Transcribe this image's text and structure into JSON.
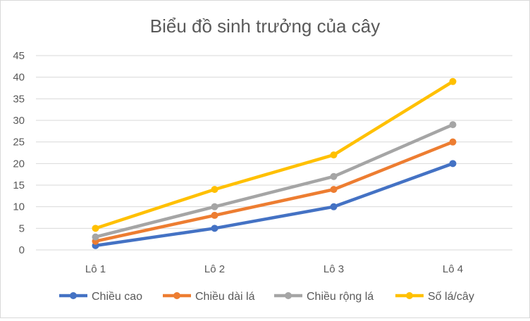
{
  "chart_data": {
    "type": "line",
    "title": "Biểu đồ sinh trưởng của cây",
    "categories": [
      "Lô 1",
      "Lô 2",
      "Lô 3",
      "Lô 4"
    ],
    "ylim": [
      0,
      45
    ],
    "yticks": [
      "0",
      "5",
      "10",
      "15",
      "20",
      "25",
      "30",
      "35",
      "40",
      "45"
    ],
    "grid": true,
    "legend_position": "bottom",
    "series": [
      {
        "name": "Chiều cao",
        "color": "#4472c4",
        "values": [
          1,
          5,
          10,
          20
        ]
      },
      {
        "name": "Chiều dài lá",
        "color": "#ed7d31",
        "values": [
          2,
          8,
          14,
          25
        ]
      },
      {
        "name": "Chiều rộng lá",
        "color": "#a5a5a5",
        "values": [
          3,
          10,
          17,
          29
        ]
      },
      {
        "name": "Số lá/cây",
        "color": "#ffc000",
        "values": [
          5,
          14,
          22,
          39
        ]
      }
    ]
  }
}
